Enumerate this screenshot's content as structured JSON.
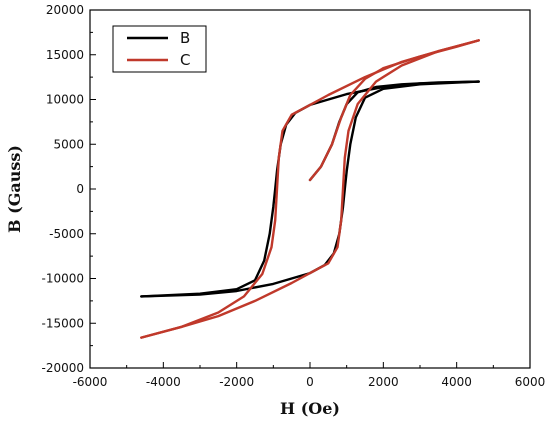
{
  "chart_data": {
    "type": "line",
    "title": "",
    "xlabel": "H (Oe)",
    "ylabel": "B (Gauss)",
    "xlim": [
      -6000,
      6000
    ],
    "ylim": [
      -20000,
      20000
    ],
    "x_ticks": [
      -6000,
      -4000,
      -2000,
      0,
      2000,
      4000,
      6000
    ],
    "y_ticks": [
      -20000,
      -15000,
      -10000,
      -5000,
      0,
      5000,
      10000,
      15000,
      20000
    ],
    "x_tick_labels": [
      "-6000",
      "-4000",
      "-2000",
      "0",
      "2000",
      "4000",
      "6000"
    ],
    "y_tick_labels": [
      "-20000",
      "-15000",
      "-10000",
      "-5000",
      "0",
      "5000",
      "10000",
      "15000",
      "20000"
    ],
    "grid": false,
    "legend_position": "top-left",
    "series": [
      {
        "name": "B",
        "color": "#000000",
        "branches": {
          "initial": [
            [
              0,
              1000
            ],
            [
              300,
              2500
            ],
            [
              600,
              5000
            ],
            [
              800,
              7500
            ],
            [
              1000,
              9500
            ],
            [
              1300,
              10800
            ],
            [
              1800,
              11400
            ],
            [
              2500,
              11700
            ],
            [
              3500,
              11900
            ],
            [
              4600,
              12000
            ]
          ],
          "descending": [
            [
              4600,
              12000
            ],
            [
              3000,
              11800
            ],
            [
              2000,
              11400
            ],
            [
              1000,
              10600
            ],
            [
              0,
              9400
            ],
            [
              -400,
              8500
            ],
            [
              -650,
              7200
            ],
            [
              -800,
              5000
            ],
            [
              -900,
              2000
            ],
            [
              -950,
              0
            ],
            [
              -1000,
              -2000
            ],
            [
              -1100,
              -5000
            ],
            [
              -1250,
              -8000
            ],
            [
              -1500,
              -10200
            ],
            [
              -2000,
              -11200
            ],
            [
              -3000,
              -11700
            ],
            [
              -4600,
              -12000
            ]
          ],
          "ascending": [
            [
              -4600,
              -12000
            ],
            [
              -3000,
              -11800
            ],
            [
              -2000,
              -11400
            ],
            [
              -1000,
              -10600
            ],
            [
              0,
              -9400
            ],
            [
              400,
              -8500
            ],
            [
              650,
              -7200
            ],
            [
              800,
              -5000
            ],
            [
              900,
              -2000
            ],
            [
              950,
              0
            ],
            [
              1000,
              2000
            ],
            [
              1100,
              5000
            ],
            [
              1250,
              8000
            ],
            [
              1500,
              10200
            ],
            [
              2000,
              11200
            ],
            [
              3000,
              11700
            ],
            [
              4600,
              12000
            ]
          ]
        }
      },
      {
        "name": "C",
        "color": "#c0392b",
        "branches": {
          "initial": [
            [
              0,
              1000
            ],
            [
              300,
              2500
            ],
            [
              600,
              5000
            ],
            [
              850,
              8000
            ],
            [
              1100,
              10500
            ],
            [
              1500,
              12300
            ],
            [
              2000,
              13500
            ],
            [
              3000,
              14800
            ],
            [
              4000,
              15900
            ],
            [
              4600,
              16600
            ]
          ],
          "descending": [
            [
              4600,
              16600
            ],
            [
              3500,
              15400
            ],
            [
              2500,
              14200
            ],
            [
              1500,
              12500
            ],
            [
              500,
              10500
            ],
            [
              0,
              9400
            ],
            [
              -500,
              8300
            ],
            [
              -750,
              6500
            ],
            [
              -850,
              3500
            ],
            [
              -900,
              0
            ],
            [
              -950,
              -3500
            ],
            [
              -1050,
              -6500
            ],
            [
              -1300,
              -9500
            ],
            [
              -1800,
              -12000
            ],
            [
              -2500,
              -13800
            ],
            [
              -3500,
              -15400
            ],
            [
              -4600,
              -16600
            ]
          ],
          "ascending": [
            [
              -4600,
              -16600
            ],
            [
              -3500,
              -15400
            ],
            [
              -2500,
              -14200
            ],
            [
              -1500,
              -12500
            ],
            [
              -500,
              -10500
            ],
            [
              0,
              -9400
            ],
            [
              500,
              -8300
            ],
            [
              750,
              -6500
            ],
            [
              850,
              -3500
            ],
            [
              900,
              0
            ],
            [
              950,
              3500
            ],
            [
              1050,
              6500
            ],
            [
              1300,
              9500
            ],
            [
              1800,
              12000
            ],
            [
              2500,
              13800
            ],
            [
              3500,
              15400
            ],
            [
              4600,
              16600
            ]
          ]
        }
      }
    ]
  }
}
